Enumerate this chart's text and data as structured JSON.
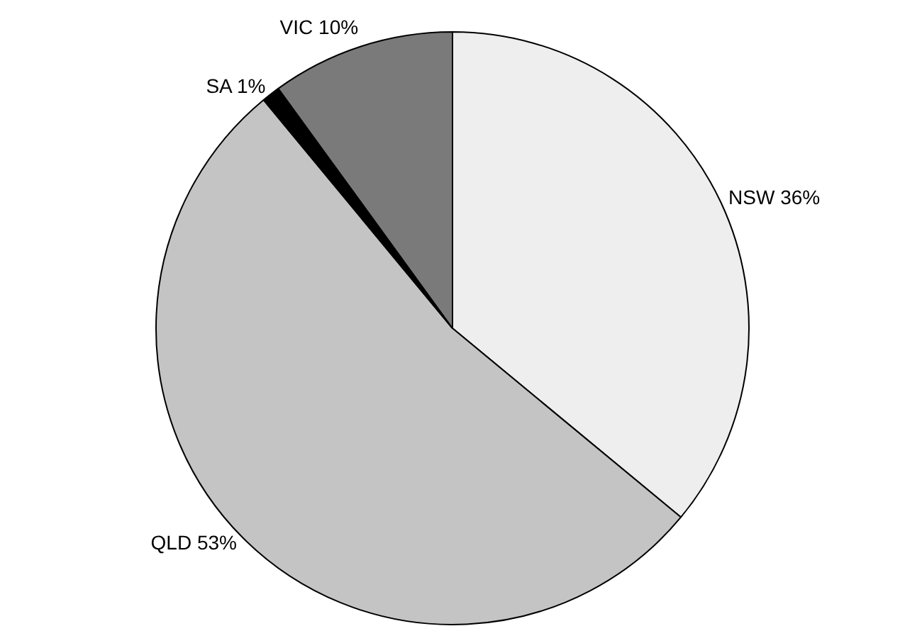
{
  "chart_data": {
    "type": "pie",
    "categories": [
      "NSW",
      "QLD",
      "SA",
      "VIC"
    ],
    "values": [
      36,
      53,
      1,
      10
    ],
    "value_labels": [
      "36%",
      "53%",
      "1%",
      "10%"
    ],
    "colors": [
      "#eeeeee",
      "#c4c4c4",
      "#000000",
      "#7a7a7a"
    ],
    "legend": false
  }
}
